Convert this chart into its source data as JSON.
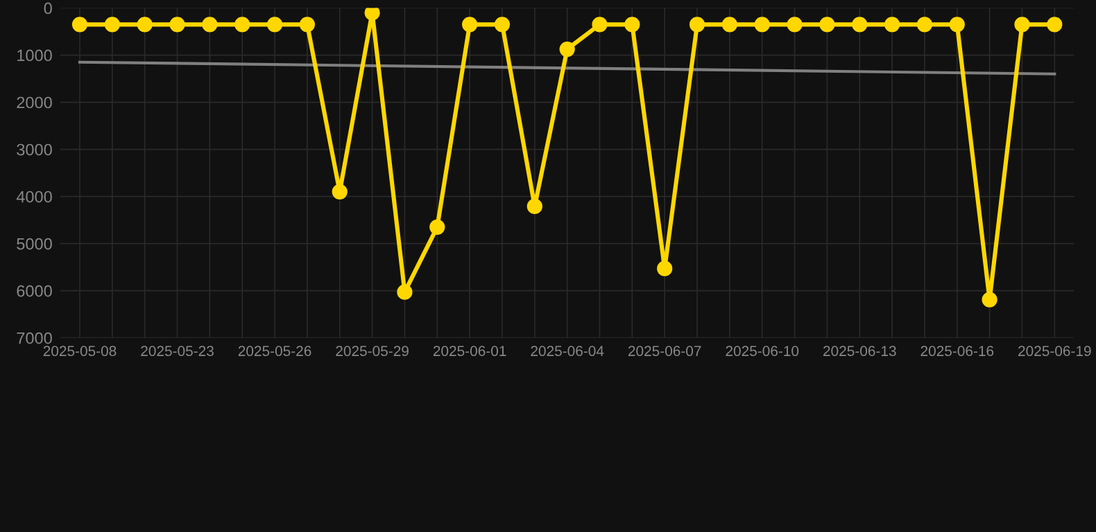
{
  "chart_data": {
    "type": "line",
    "categories": [
      "2025-05-08",
      null,
      null,
      "2025-05-23",
      null,
      null,
      "2025-05-26",
      null,
      null,
      "2025-05-29",
      null,
      null,
      "2025-06-01",
      null,
      null,
      "2025-06-04",
      null,
      null,
      "2025-06-07",
      null,
      null,
      "2025-06-10",
      null,
      null,
      "2025-06-13",
      null,
      null,
      "2025-06-16",
      null,
      null,
      "2025-06-19"
    ],
    "series": [
      {
        "color": "#ffd700",
        "marker": "circle",
        "values": [
          350,
          350,
          350,
          350,
          350,
          350,
          350,
          350,
          3900,
          100,
          6030,
          4650,
          350,
          350,
          4210,
          875,
          350,
          350,
          5530,
          350,
          350,
          350,
          350,
          350,
          350,
          350,
          350,
          350,
          6190,
          350,
          350
        ]
      },
      {
        "color": "#808080",
        "marker": "none",
        "values": [
          1150,
          null,
          null,
          null,
          null,
          null,
          null,
          null,
          null,
          null,
          null,
          null,
          null,
          null,
          null,
          null,
          null,
          null,
          null,
          null,
          null,
          null,
          null,
          null,
          null,
          null,
          null,
          null,
          null,
          null,
          1400
        ]
      }
    ],
    "ylim": [
      7000,
      0
    ],
    "yticks": [
      0,
      1000,
      2000,
      3000,
      4000,
      5000,
      6000,
      7000
    ],
    "grid": true,
    "line_style": "solid"
  }
}
